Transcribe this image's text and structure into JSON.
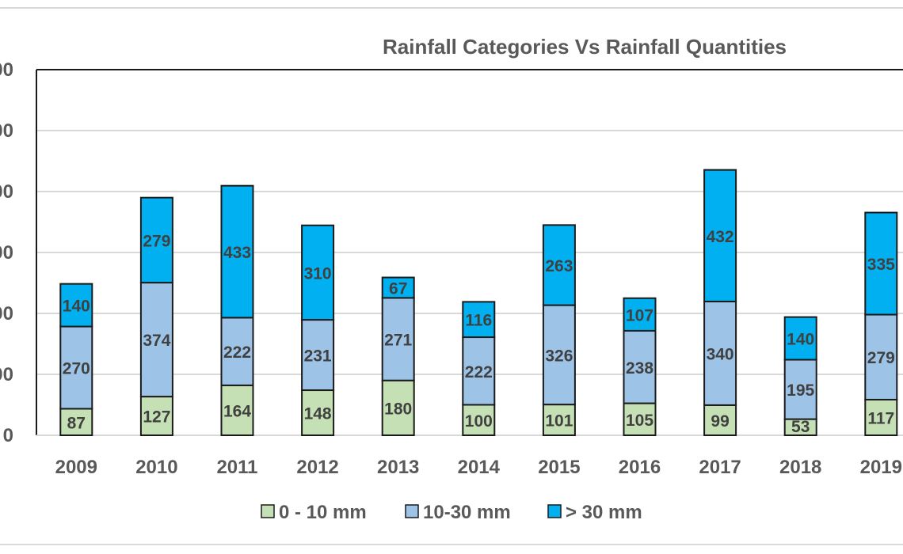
{
  "chart_data": {
    "type": "bar",
    "stacked": true,
    "title": "Rainfall Categories Vs Rainfall Quantities",
    "categories": [
      "2009",
      "2010",
      "2011",
      "2012",
      "2013",
      "2014",
      "2015",
      "2016",
      "2017",
      "2018",
      "2019"
    ],
    "series": [
      {
        "name": "0 - 10 mm",
        "color": "#c5e0b4",
        "values": [
          87,
          127,
          164,
          148,
          180,
          100,
          101,
          105,
          99,
          53,
          117
        ]
      },
      {
        "name": "10-30 mm",
        "color": "#9dc3e6",
        "values": [
          270,
          374,
          222,
          231,
          271,
          222,
          326,
          238,
          340,
          195,
          279
        ]
      },
      {
        "name": "> 30 mm",
        "color": "#00b0f0",
        "values": [
          140,
          279,
          433,
          310,
          67,
          116,
          263,
          107,
          432,
          140,
          335
        ]
      }
    ],
    "y_tick_labels": [
      "0",
      "00",
      "00",
      "00",
      "00",
      "00",
      "00"
    ],
    "ylim": [
      0,
      1200
    ],
    "y_tick_step": 200,
    "grid": true,
    "legend_position": "bottom"
  }
}
